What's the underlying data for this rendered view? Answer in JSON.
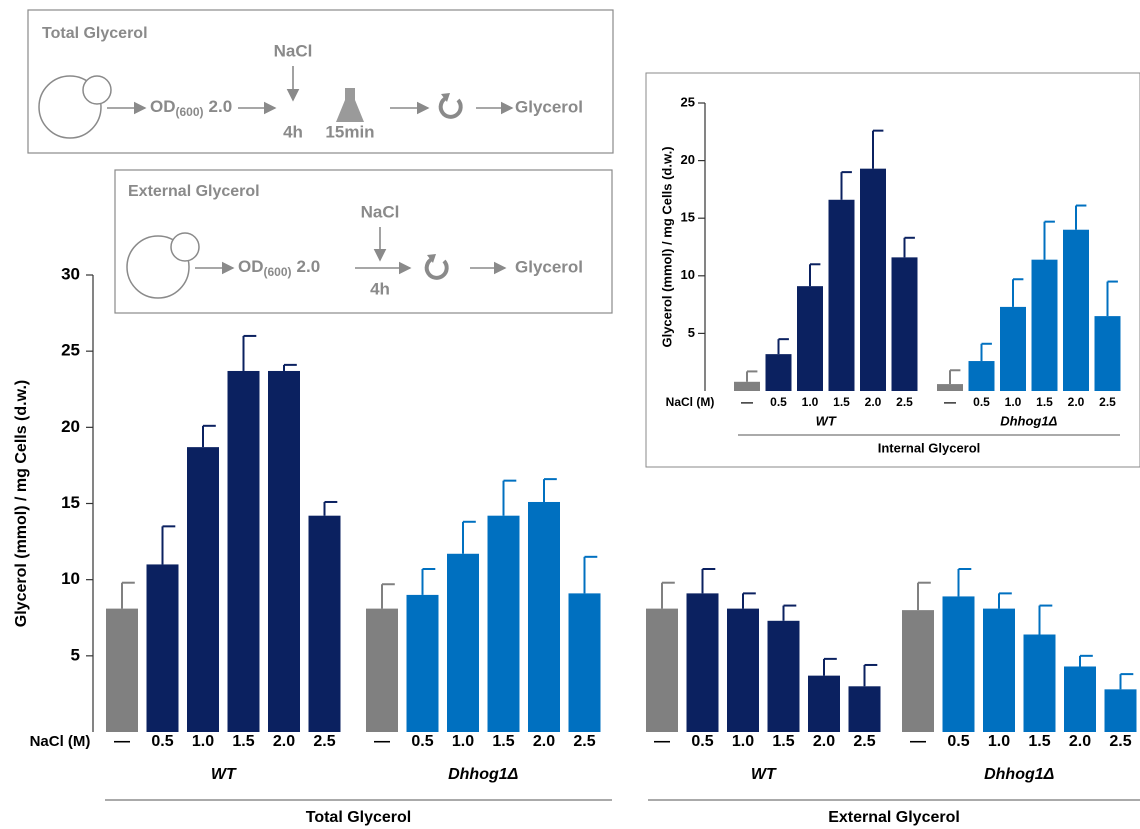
{
  "diagrams": [
    {
      "title": "Total Glycerol",
      "stimulus": "NaCl",
      "od": "OD",
      "od_sub": "(600)",
      "od_value": "2.0",
      "time": "4h",
      "time2": "15min",
      "product": "Glycerol"
    },
    {
      "title": "External Glycerol",
      "stimulus": "NaCl",
      "od": "OD",
      "od_sub": "(600)",
      "od_value": "2.0",
      "time": "4h",
      "product": "Glycerol"
    }
  ],
  "chart_data": [
    {
      "type": "bar",
      "y_label": "Glycerol (mmol) / mg Cells (d.w.)",
      "x_label": "NaCl (M)",
      "ylim": [
        0,
        30
      ],
      "yticks": [
        5,
        10,
        15,
        20,
        25,
        30
      ],
      "panels": [
        {
          "label": "Total Glycerol",
          "groups": [
            {
              "name": "WT",
              "categories": [
                "—",
                "0.5",
                "1.0",
                "1.5",
                "2.0",
                "2.5"
              ],
              "values": [
                8.1,
                11.0,
                18.7,
                23.7,
                23.7,
                14.2
              ],
              "errors": [
                1.7,
                2.5,
                1.4,
                2.3,
                0.4,
                0.9
              ],
              "colors": [
                "#808080",
                "#0b2160",
                "#0b2160",
                "#0b2160",
                "#0b2160",
                "#0b2160"
              ]
            },
            {
              "name": "Dhhog1Δ",
              "categories": [
                "—",
                "0.5",
                "1.0",
                "1.5",
                "2.0",
                "2.5"
              ],
              "values": [
                8.1,
                9.0,
                11.7,
                14.2,
                15.1,
                9.1
              ],
              "errors": [
                1.6,
                1.7,
                2.1,
                2.3,
                1.5,
                2.4
              ],
              "colors": [
                "#808080",
                "#0070c0",
                "#0070c0",
                "#0070c0",
                "#0070c0",
                "#0070c0"
              ]
            }
          ]
        },
        {
          "label": "External Glycerol",
          "groups": [
            {
              "name": "WT",
              "categories": [
                "—",
                "0.5",
                "1.0",
                "1.5",
                "2.0",
                "2.5"
              ],
              "values": [
                8.1,
                9.1,
                8.1,
                7.3,
                3.7,
                3.0
              ],
              "errors": [
                1.7,
                1.6,
                1.0,
                1.0,
                1.1,
                1.4
              ],
              "colors": [
                "#808080",
                "#0b2160",
                "#0b2160",
                "#0b2160",
                "#0b2160",
                "#0b2160"
              ]
            },
            {
              "name": "Dhhog1Δ",
              "categories": [
                "—",
                "0.5",
                "1.0",
                "1.5",
                "2.0",
                "2.5"
              ],
              "values": [
                8.0,
                8.9,
                8.1,
                6.4,
                4.3,
                2.8
              ],
              "errors": [
                1.8,
                1.8,
                1.0,
                1.9,
                0.7,
                1.0
              ],
              "colors": [
                "#808080",
                "#0070c0",
                "#0070c0",
                "#0070c0",
                "#0070c0",
                "#0070c0"
              ]
            }
          ]
        }
      ]
    },
    {
      "type": "bar",
      "y_label": "Glycerol (mmol) / mg Cells (d.w.)",
      "x_label": "NaCl (M)",
      "ylim": [
        0,
        25
      ],
      "yticks": [
        5,
        10,
        15,
        20,
        25
      ],
      "panels": [
        {
          "label": "Internal Glycerol",
          "groups": [
            {
              "name": "WT",
              "categories": [
                "—",
                "0.5",
                "1.0",
                "1.5",
                "2.0",
                "2.5"
              ],
              "values": [
                0.8,
                3.2,
                9.1,
                16.6,
                19.3,
                11.6
              ],
              "errors": [
                0.9,
                1.3,
                1.9,
                2.4,
                3.3,
                1.7
              ],
              "colors": [
                "#808080",
                "#0b2160",
                "#0b2160",
                "#0b2160",
                "#0b2160",
                "#0b2160"
              ]
            },
            {
              "name": "Dhhog1Δ",
              "categories": [
                "—",
                "0.5",
                "1.0",
                "1.5",
                "2.0",
                "2.5"
              ],
              "values": [
                0.6,
                2.6,
                7.3,
                11.4,
                14.0,
                6.5
              ],
              "errors": [
                1.2,
                1.5,
                2.4,
                3.3,
                2.1,
                3.0
              ],
              "colors": [
                "#808080",
                "#0070c0",
                "#0070c0",
                "#0070c0",
                "#0070c0",
                "#0070c0"
              ]
            }
          ]
        }
      ]
    }
  ]
}
